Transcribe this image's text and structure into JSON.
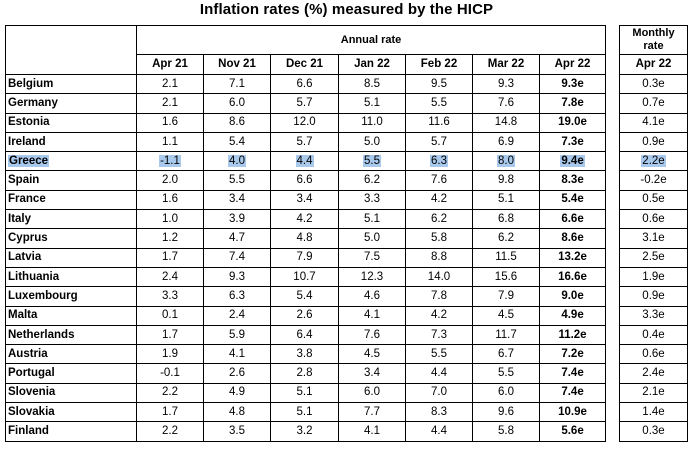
{
  "title": "Inflation rates (%) measured by the HICP",
  "annual_header": "Annual rate",
  "monthly_header_line1": "Monthly",
  "monthly_header_line2": "rate",
  "columns": [
    "Apr 21",
    "Nov 21",
    "Dec 21",
    "Jan 22",
    "Feb 22",
    "Mar 22",
    "Apr 22"
  ],
  "monthly_column": "Apr 22",
  "highlight_color": "#a8c8ec",
  "rows": [
    {
      "country": "Belgium",
      "values": [
        "2.1",
        "7.1",
        "6.6",
        "8.5",
        "9.5",
        "9.3",
        "9.3e"
      ],
      "monthly": "0.3e"
    },
    {
      "country": "Germany",
      "values": [
        "2.1",
        "6.0",
        "5.7",
        "5.1",
        "5.5",
        "7.6",
        "7.8e"
      ],
      "monthly": "0.7e"
    },
    {
      "country": "Estonia",
      "values": [
        "1.6",
        "8.6",
        "12.0",
        "11.0",
        "11.6",
        "14.8",
        "19.0e"
      ],
      "monthly": "4.1e"
    },
    {
      "country": "Ireland",
      "values": [
        "1.1",
        "5.4",
        "5.7",
        "5.0",
        "5.7",
        "6.9",
        "7.3e"
      ],
      "monthly": "0.9e"
    },
    {
      "country": "Greece",
      "values": [
        "-1.1",
        "4.0",
        "4.4",
        "5.5",
        "6.3",
        "8.0",
        "9.4e"
      ],
      "monthly": "2.2e",
      "highlighted": true
    },
    {
      "country": "Spain",
      "values": [
        "2.0",
        "5.5",
        "6.6",
        "6.2",
        "7.6",
        "9.8",
        "8.3e"
      ],
      "monthly": "-0.2e"
    },
    {
      "country": "France",
      "values": [
        "1.6",
        "3.4",
        "3.4",
        "3.3",
        "4.2",
        "5.1",
        "5.4e"
      ],
      "monthly": "0.5e"
    },
    {
      "country": "Italy",
      "values": [
        "1.0",
        "3.9",
        "4.2",
        "5.1",
        "6.2",
        "6.8",
        "6.6e"
      ],
      "monthly": "0.6e"
    },
    {
      "country": "Cyprus",
      "values": [
        "1.2",
        "4.7",
        "4.8",
        "5.0",
        "5.8",
        "6.2",
        "8.6e"
      ],
      "monthly": "3.1e"
    },
    {
      "country": "Latvia",
      "values": [
        "1.7",
        "7.4",
        "7.9",
        "7.5",
        "8.8",
        "11.5",
        "13.2e"
      ],
      "monthly": "2.5e"
    },
    {
      "country": "Lithuania",
      "values": [
        "2.4",
        "9.3",
        "10.7",
        "12.3",
        "14.0",
        "15.6",
        "16.6e"
      ],
      "monthly": "1.9e"
    },
    {
      "country": "Luxembourg",
      "values": [
        "3.3",
        "6.3",
        "5.4",
        "4.6",
        "7.8",
        "7.9",
        "9.0e"
      ],
      "monthly": "0.9e"
    },
    {
      "country": "Malta",
      "values": [
        "0.1",
        "2.4",
        "2.6",
        "4.1",
        "4.2",
        "4.5",
        "4.9e"
      ],
      "monthly": "3.3e"
    },
    {
      "country": "Netherlands",
      "values": [
        "1.7",
        "5.9",
        "6.4",
        "7.6",
        "7.3",
        "11.7",
        "11.2e"
      ],
      "monthly": "0.4e"
    },
    {
      "country": "Austria",
      "values": [
        "1.9",
        "4.1",
        "3.8",
        "4.5",
        "5.5",
        "6.7",
        "7.2e"
      ],
      "monthly": "0.6e"
    },
    {
      "country": "Portugal",
      "values": [
        "-0.1",
        "2.6",
        "2.8",
        "3.4",
        "4.4",
        "5.5",
        "7.4e"
      ],
      "monthly": "2.4e"
    },
    {
      "country": "Slovenia",
      "values": [
        "2.2",
        "4.9",
        "5.1",
        "6.0",
        "7.0",
        "6.0",
        "7.4e"
      ],
      "monthly": "2.1e"
    },
    {
      "country": "Slovakia",
      "values": [
        "1.7",
        "4.8",
        "5.1",
        "7.7",
        "8.3",
        "9.6",
        "10.9e"
      ],
      "monthly": "1.4e"
    },
    {
      "country": "Finland",
      "values": [
        "2.2",
        "3.5",
        "3.2",
        "4.1",
        "4.4",
        "5.8",
        "5.6e"
      ],
      "monthly": "0.3e"
    }
  ]
}
